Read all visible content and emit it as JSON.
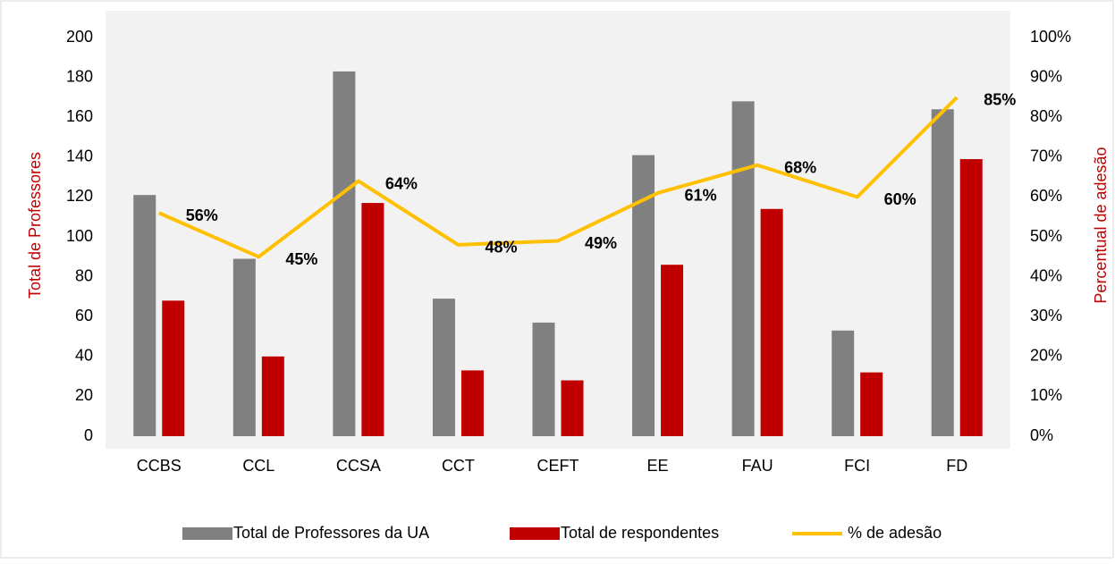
{
  "chart_data": {
    "type": "bar",
    "categories": [
      "CCBS",
      "CCL",
      "CCSA",
      "CCT",
      "CEFT",
      "EE",
      "FAU",
      "FCI",
      "FD"
    ],
    "series": [
      {
        "name": "Total de Professores da UA",
        "color": "#808080",
        "values": [
          121,
          89,
          183,
          69,
          57,
          141,
          168,
          53,
          164
        ]
      },
      {
        "name": "Total de respondentes",
        "color": "#c00000",
        "values": [
          68,
          40,
          117,
          33,
          28,
          86,
          114,
          32,
          139
        ]
      },
      {
        "name": "% de adesão",
        "color": "#ffc000",
        "type": "line",
        "axis": "y2",
        "values": [
          56,
          45,
          64,
          48,
          49,
          61,
          68,
          60,
          85
        ],
        "value_labels": [
          "56%",
          "45%",
          "64%",
          "48%",
          "49%",
          "61%",
          "68%",
          "60%",
          "85%"
        ]
      }
    ],
    "ylabel": "Total de Professores",
    "y2label": "Percentual de adesão",
    "ylim": [
      0,
      200
    ],
    "yticks": [
      0,
      20,
      40,
      60,
      80,
      100,
      120,
      140,
      160,
      180,
      200
    ],
    "y2lim": [
      0,
      100
    ],
    "y2ticks": [
      {
        "value": 0,
        "label": "0%"
      },
      {
        "value": 10,
        "label": "10%"
      },
      {
        "value": 20,
        "label": "20%"
      },
      {
        "value": 30,
        "label": "30%"
      },
      {
        "value": 40,
        "label": "40%"
      },
      {
        "value": 50,
        "label": "50%"
      },
      {
        "value": 60,
        "label": "60%"
      },
      {
        "value": 70,
        "label": "70%"
      },
      {
        "value": 80,
        "label": "80%"
      },
      {
        "value": 90,
        "label": "90%"
      },
      {
        "value": 100,
        "label": "100%"
      }
    ],
    "grid": false,
    "legend": "bottom"
  }
}
